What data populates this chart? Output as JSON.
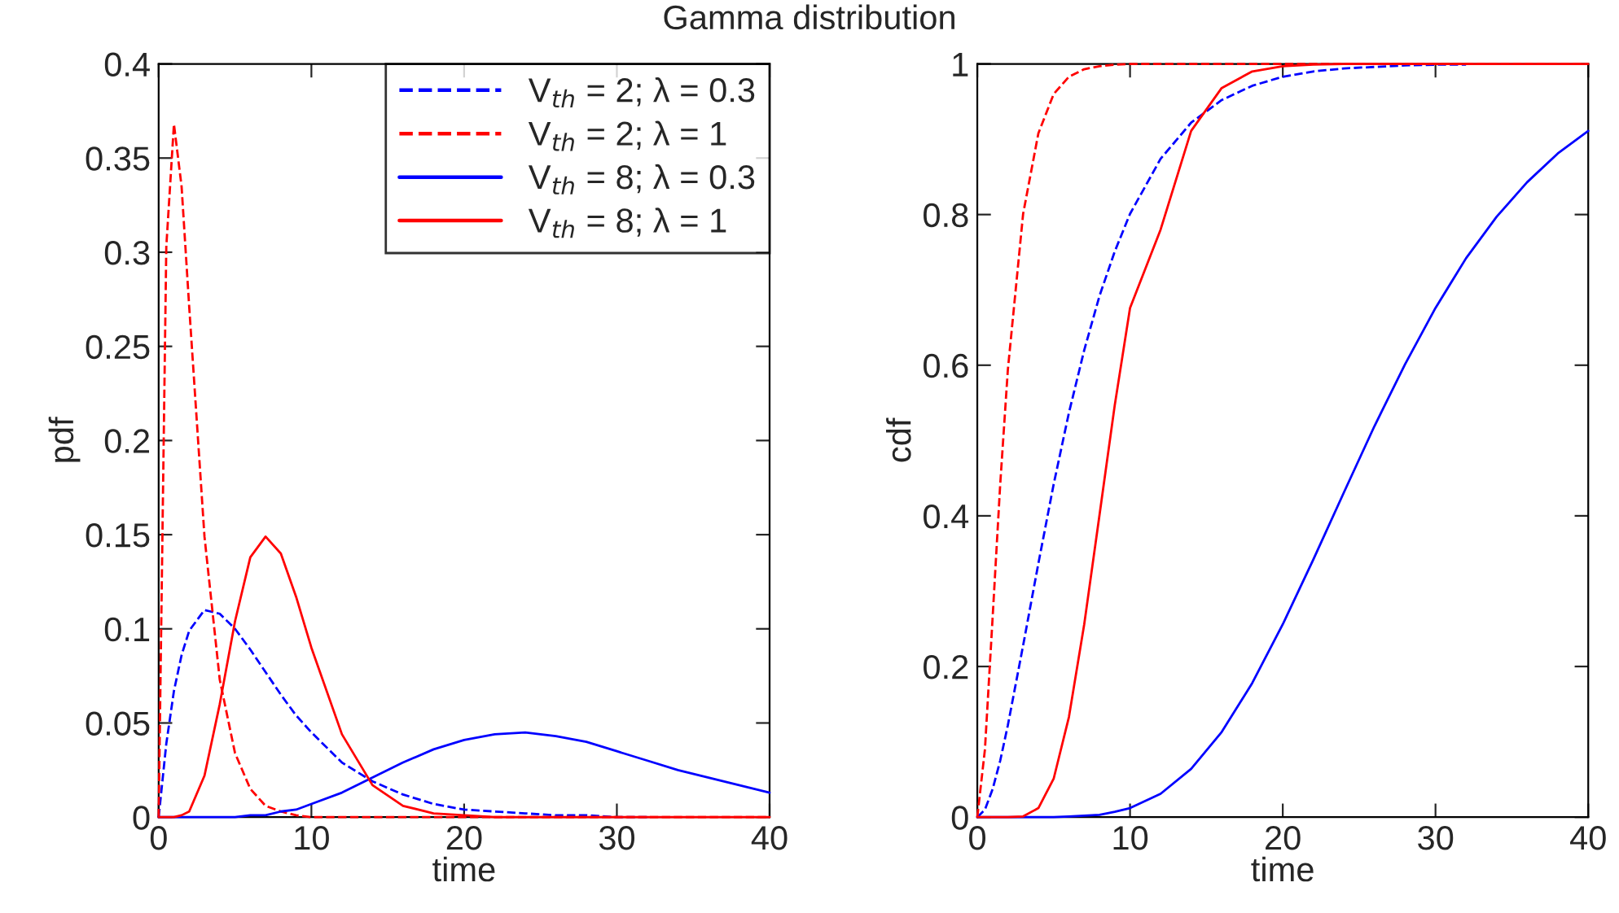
{
  "chart_data": [
    {
      "type": "line",
      "title": "Gamma distribution",
      "xlabel": "time",
      "ylabel": "pdf",
      "xlim": [
        0,
        40
      ],
      "ylim": [
        0,
        0.4
      ],
      "xticks": [
        0,
        10,
        20,
        30,
        40
      ],
      "yticks": [
        0,
        0.05,
        0.1,
        0.15,
        0.2,
        0.25,
        0.3,
        0.35,
        0.4
      ],
      "grid": false,
      "legend": "top right",
      "marker": "none",
      "x": [
        0,
        0.5,
        1,
        1.5,
        2,
        3,
        4,
        5,
        6,
        7,
        8,
        9,
        10,
        12,
        14,
        16,
        18,
        20,
        22,
        24,
        26,
        28,
        30,
        32,
        34,
        36,
        38,
        40
      ],
      "series": [
        {
          "name": "V$_{th}$ = 2; λ = 0.3",
          "color": "#0000ff",
          "line_style": "dashed",
          "values": [
            0,
            0.039,
            0.067,
            0.086,
            0.099,
            0.11,
            0.108,
            0.1,
            0.089,
            0.077,
            0.065,
            0.054,
            0.045,
            0.029,
            0.019,
            0.012,
            0.007,
            0.004,
            0.003,
            0.002,
            0.001,
            0.001,
            0,
            0,
            null,
            null,
            null,
            null
          ]
        },
        {
          "name": "V$_{th}$ = 2; λ = 1",
          "color": "#ff0000",
          "line_style": "dashed",
          "values": [
            0,
            0.303,
            0.368,
            0.335,
            0.271,
            0.149,
            0.073,
            0.034,
            0.015,
            0.006,
            0.003,
            0.001,
            0,
            0,
            0,
            0,
            0,
            0,
            0,
            0,
            0,
            0,
            0,
            0,
            0,
            0,
            0,
            0
          ]
        },
        {
          "name": "V$_{th}$ = 8; λ = 0.3",
          "color": "#0000ff",
          "line_style": "solid",
          "values": [
            0,
            0,
            0,
            0,
            0,
            0,
            0,
            0,
            0.001,
            0.001,
            0.003,
            0.004,
            0.007,
            0.013,
            0.021,
            0.029,
            0.036,
            0.041,
            0.044,
            0.045,
            0.043,
            0.04,
            0.035,
            0.03,
            0.025,
            0.021,
            0.017,
            0.013
          ]
        },
        {
          "name": "V$_{th}$ = 8; λ = 1",
          "color": "#ff0000",
          "line_style": "solid",
          "values": [
            0,
            0,
            0,
            0.001,
            0.003,
            0.022,
            0.06,
            0.104,
            0.138,
            0.149,
            0.14,
            0.117,
            0.09,
            0.044,
            0.017,
            0.006,
            0.002,
            0.001,
            0,
            0,
            0,
            0,
            0,
            0,
            0,
            0,
            0,
            0
          ]
        }
      ]
    },
    {
      "type": "line",
      "xlabel": "time",
      "ylabel": "cdf",
      "xlim": [
        0,
        40
      ],
      "ylim": [
        0,
        1
      ],
      "xticks": [
        0,
        10,
        20,
        30,
        40
      ],
      "yticks": [
        0,
        0.2,
        0.4,
        0.6,
        0.8,
        1
      ],
      "grid": false,
      "legend": false,
      "marker": "none",
      "x": [
        0,
        0.5,
        1,
        1.5,
        2,
        3,
        4,
        5,
        6,
        7,
        8,
        9,
        10,
        12,
        14,
        16,
        18,
        20,
        22,
        24,
        26,
        28,
        30,
        32,
        34,
        36,
        38,
        40
      ],
      "series": [
        {
          "color": "#0000ff",
          "line_style": "dashed",
          "values": [
            0,
            0.01,
            0.037,
            0.075,
            0.122,
            0.228,
            0.337,
            0.442,
            0.537,
            0.62,
            0.692,
            0.751,
            0.801,
            0.874,
            0.922,
            0.952,
            0.971,
            0.983,
            0.99,
            0.994,
            0.996,
            0.998,
            0.999,
            0.999,
            null,
            null,
            null,
            null
          ]
        },
        {
          "color": "#ff0000",
          "line_style": "dashed",
          "values": [
            0,
            0.09,
            0.264,
            0.442,
            0.594,
            0.801,
            0.908,
            0.96,
            0.983,
            0.993,
            0.997,
            0.999,
            1,
            1,
            1,
            1,
            1,
            1,
            1,
            1,
            1,
            1,
            1,
            1,
            1,
            1,
            1,
            1
          ]
        },
        {
          "color": "#0000ff",
          "line_style": "solid",
          "values": [
            0,
            0,
            0,
            0,
            0,
            0,
            0,
            0,
            0.001,
            0.002,
            0.003,
            0.007,
            0.012,
            0.031,
            0.064,
            0.113,
            0.178,
            0.256,
            0.342,
            0.431,
            0.519,
            0.601,
            0.676,
            0.742,
            0.797,
            0.843,
            0.881,
            0.911
          ]
        },
        {
          "color": "#ff0000",
          "line_style": "solid",
          "values": [
            0,
            0,
            0,
            0,
            0,
            0.001,
            0.012,
            0.051,
            0.133,
            0.256,
            0.401,
            0.547,
            0.676,
            0.78,
            0.911,
            0.968,
            0.99,
            0.997,
            0.999,
            1,
            1,
            1,
            1,
            1,
            1,
            1,
            1,
            1
          ]
        }
      ]
    }
  ]
}
